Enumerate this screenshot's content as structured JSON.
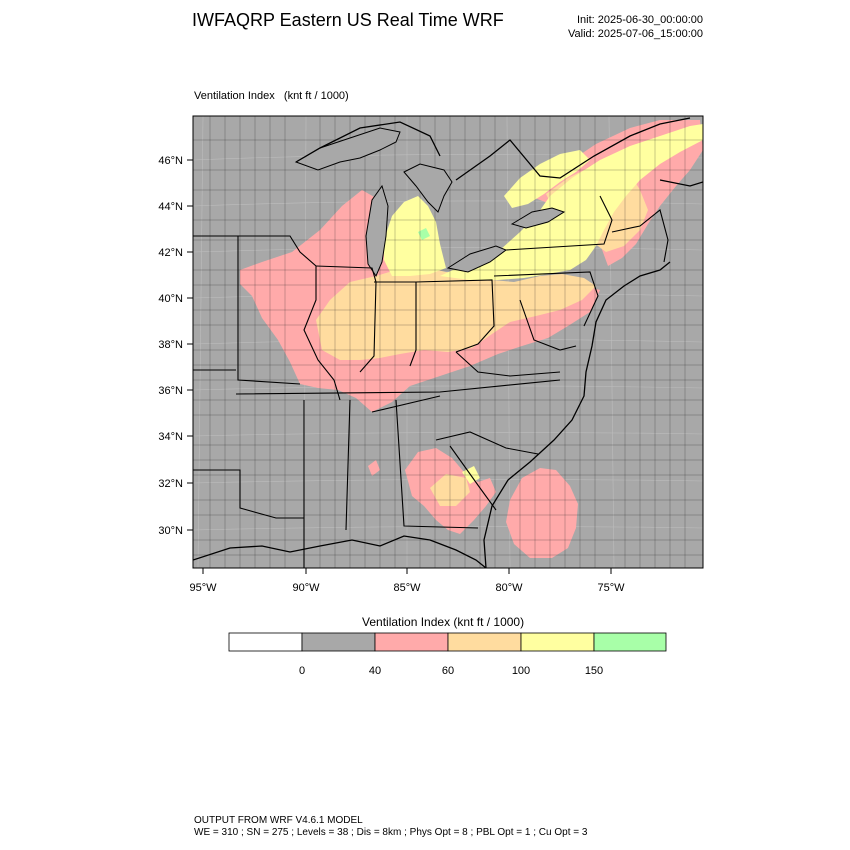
{
  "header": {
    "title": "IWFAQRP Eastern US Real Time WRF",
    "init": "Init: 2025-06-30_00:00:00",
    "valid": "Valid: 2025-07-06_15:00:00"
  },
  "field": {
    "name": "Ventilation Index",
    "units": "(knt ft / 1000)"
  },
  "map": {
    "lat_labels": [
      "46°N",
      "44°N",
      "42°N",
      "40°N",
      "38°N",
      "36°N",
      "34°N",
      "32°N",
      "30°N"
    ],
    "lon_labels": [
      "95°W",
      "90°W",
      "85°W",
      "80°W",
      "75°W"
    ],
    "background_color": "#a8a8a8"
  },
  "colorbar": {
    "title": "Ventilation Index  (knt ft / 1000)",
    "bins": [
      {
        "color": "#ffffff"
      },
      {
        "color": "#a8a8a8"
      },
      {
        "color": "#ffaaaa"
      },
      {
        "color": "#ffdc9f"
      },
      {
        "color": "#ffffa0"
      },
      {
        "color": "#a8ffa8"
      }
    ],
    "labels": [
      "0",
      "40",
      "60",
      "100",
      "150"
    ]
  },
  "footer": {
    "line1": "OUTPUT FROM WRF V4.6.1 MODEL",
    "line2": "WE = 310 ; SN = 275 ; Levels = 38 ; Dis = 8km ; Phys Opt = 8 ; PBL Opt = 1 ; Cu Opt = 3"
  }
}
